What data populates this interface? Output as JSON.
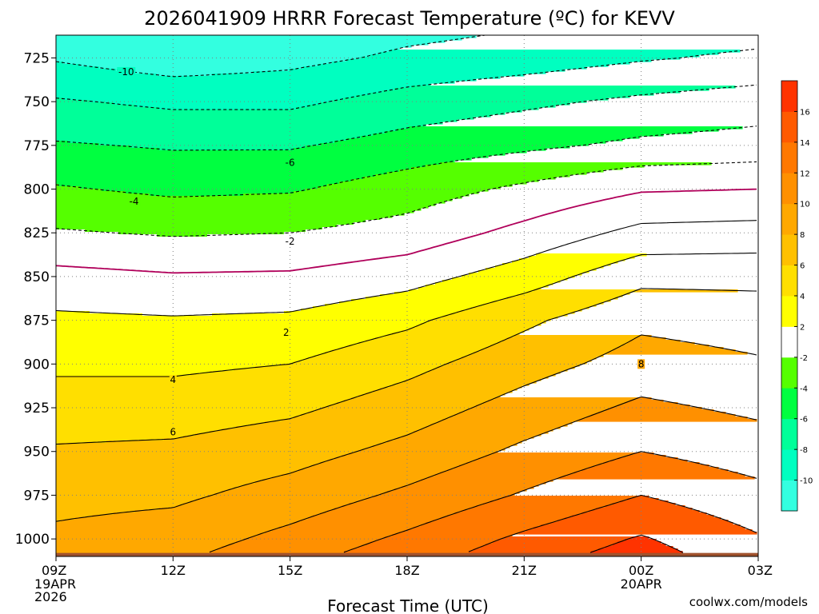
{
  "title": "2026041909 HRRR Forecast Temperature (ºC) for KEVV",
  "credit": "coolwx.com/models",
  "colors": {
    "background": "#ffffff",
    "ground": "#a0522d",
    "freezing_line": "#b0005a",
    "contour": "#000000",
    "grid": "#808080"
  },
  "chart_data": {
    "type": "heatmap",
    "title": "2026041909 HRRR Forecast Temperature (ºC) for KEVV",
    "xlabel": "Forecast Time (UTC)",
    "ylabel": "",
    "x_ticks": [
      {
        "label": "09Z",
        "sub": [
          "19APR",
          "2026"
        ],
        "hour": 9
      },
      {
        "label": "12Z",
        "sub": [],
        "hour": 12
      },
      {
        "label": "15Z",
        "sub": [],
        "hour": 15
      },
      {
        "label": "18Z",
        "sub": [],
        "hour": 18
      },
      {
        "label": "21Z",
        "sub": [],
        "hour": 21
      },
      {
        "label": "00Z",
        "sub": [
          "20APR"
        ],
        "hour": 24
      },
      {
        "label": "03Z",
        "sub": [],
        "hour": 27
      }
    ],
    "xlim": [
      9,
      27
    ],
    "y_ticks": [
      725,
      750,
      775,
      800,
      825,
      850,
      875,
      900,
      925,
      950,
      975,
      1000
    ],
    "ylim": [
      712,
      1010
    ],
    "ground_pressure": 1008,
    "colorbar": {
      "bins": [
        {
          "min": -12,
          "max": -10,
          "color": "#33ffe0"
        },
        {
          "min": -10,
          "max": -8,
          "color": "#00ffc0"
        },
        {
          "min": -8,
          "max": -6,
          "color": "#00ff99"
        },
        {
          "min": -6,
          "max": -4,
          "color": "#00ff40"
        },
        {
          "min": -4,
          "max": -2,
          "color": "#55ff00"
        },
        {
          "min": -2,
          "max": 2,
          "color": "#ffffff"
        },
        {
          "min": 2,
          "max": 4,
          "color": "#ffff00"
        },
        {
          "min": 4,
          "max": 6,
          "color": "#ffdf00"
        },
        {
          "min": 6,
          "max": 8,
          "color": "#ffc000"
        },
        {
          "min": 8,
          "max": 10,
          "color": "#ffa800"
        },
        {
          "min": 10,
          "max": 12,
          "color": "#ff9000"
        },
        {
          "min": 12,
          "max": 14,
          "color": "#ff7800"
        },
        {
          "min": 14,
          "max": 16,
          "color": "#ff5a00"
        },
        {
          "min": 16,
          "max": 18,
          "color": "#ff3300"
        }
      ],
      "tick_labels": [
        "-10",
        "-8",
        "-6",
        "-4",
        "-2",
        "2",
        "4",
        "6",
        "8",
        "10",
        "12",
        "14",
        "16"
      ]
    },
    "temperature_grid": {
      "hours": [
        9,
        12,
        15,
        18,
        21,
        24,
        27
      ],
      "pressures": [
        712,
        725,
        750,
        775,
        800,
        825,
        850,
        875,
        900,
        925,
        950,
        975,
        1000,
        1008
      ],
      "values": [
        [
          -13.0,
          -12.0,
          -11.4,
          -10.4,
          -9.8,
          -9.0,
          -8.6
        ],
        [
          -10.2,
          -11.2,
          -10.6,
          -9.6,
          -9.0,
          -8.2,
          -7.6
        ],
        [
          -7.8,
          -8.4,
          -8.4,
          -7.2,
          -6.4,
          -5.6,
          -5.0
        ],
        [
          -5.8,
          -6.2,
          -6.2,
          -5.2,
          -4.4,
          -3.6,
          -3.2
        ],
        [
          -3.8,
          -4.4,
          -4.2,
          -3.0,
          -1.6,
          -0.2,
          0.0
        ],
        [
          -1.8,
          -2.2,
          -2.0,
          -1.2,
          0.6,
          2.6,
          2.8
        ],
        [
          0.6,
          0.2,
          0.3,
          1.2,
          3.0,
          5.4,
          5.4
        ],
        [
          2.4,
          2.2,
          2.4,
          3.6,
          5.6,
          7.6,
          7.2
        ],
        [
          3.6,
          3.6,
          4.0,
          5.4,
          7.2,
          8.8,
          8.2
        ],
        [
          5.0,
          5.0,
          5.6,
          7.0,
          8.8,
          10.4,
          9.6
        ],
        [
          6.2,
          6.4,
          7.2,
          8.6,
          10.4,
          12.0,
          11.0
        ],
        [
          7.4,
          7.6,
          8.8,
          10.4,
          12.2,
          14.0,
          12.6
        ],
        [
          8.4,
          9.0,
          10.6,
          12.4,
          14.4,
          16.2,
          14.2
        ],
        [
          8.8,
          9.5,
          11.2,
          13.0,
          15.0,
          16.8,
          14.6
        ]
      ]
    },
    "contour_labels": [
      {
        "text": "-10",
        "hour": 10.8,
        "pressure": 733
      },
      {
        "text": "-6",
        "hour": 15.0,
        "pressure": 785
      },
      {
        "text": "-4",
        "hour": 11.0,
        "pressure": 807
      },
      {
        "text": "-2",
        "hour": 15.0,
        "pressure": 830
      },
      {
        "text": "2",
        "hour": 14.9,
        "pressure": 882
      },
      {
        "text": "4",
        "hour": 12.0,
        "pressure": 909
      },
      {
        "text": "6",
        "hour": 12.0,
        "pressure": 939
      },
      {
        "text": "8",
        "hour": 24.0,
        "pressure": 900
      }
    ]
  }
}
